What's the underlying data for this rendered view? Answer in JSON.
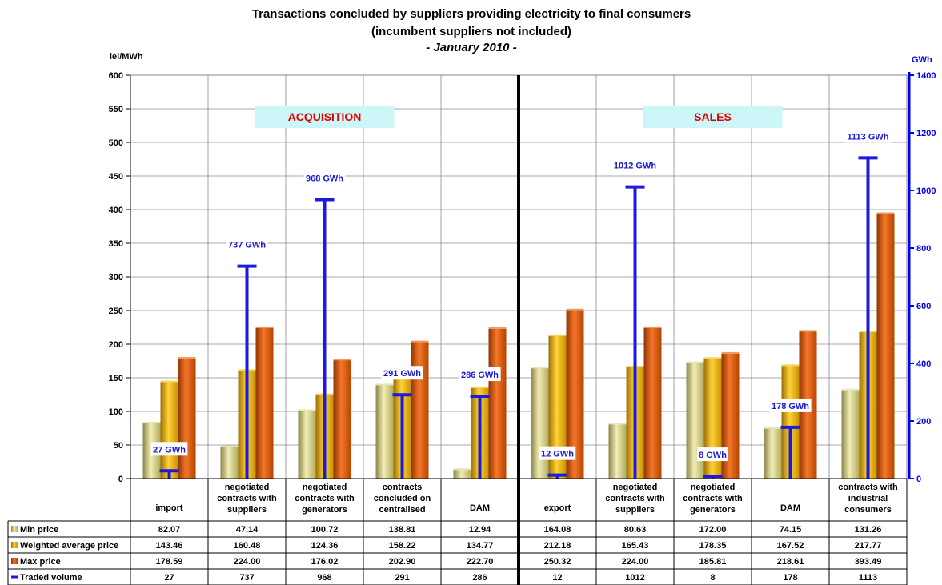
{
  "chart_data": {
    "type": "bar",
    "title": "Transactions concluded by suppliers providing electricity to final consumers",
    "subtitle": "(incumbent suppliers not included)",
    "period": "- January 2010 -",
    "ylabel_left": "lei/MWh",
    "ylabel_right": "GWh",
    "ylim_left": [
      0,
      600
    ],
    "ylim_right": [
      0,
      1400
    ],
    "yticks_left": [
      0,
      50,
      100,
      150,
      200,
      250,
      300,
      350,
      400,
      450,
      500,
      550,
      600
    ],
    "yticks_right": [
      0,
      200,
      400,
      600,
      800,
      1000,
      1200,
      1400
    ],
    "grid": true,
    "sections": [
      {
        "label": "ACQUISITION",
        "from": 0,
        "to": 4
      },
      {
        "label": "SALES",
        "from": 5,
        "to": 9
      }
    ],
    "categories": [
      [
        "import"
      ],
      [
        "negotiated",
        "contracts with",
        "suppliers"
      ],
      [
        "negotiated",
        "contracts with",
        "generators"
      ],
      [
        "contracts",
        "concluded on",
        "centralised"
      ],
      [
        "DAM"
      ],
      [
        "export"
      ],
      [
        "negotiated",
        "contracts with",
        "suppliers"
      ],
      [
        "negotiated",
        "contracts with",
        "generators"
      ],
      [
        "DAM"
      ],
      [
        "contracts with",
        "industrial",
        "consumers"
      ]
    ],
    "series": [
      {
        "name": "Min price",
        "axis": "left",
        "color": "#d9d48a",
        "values": [
          82.07,
          47.14,
          100.72,
          138.81,
          12.94,
          164.08,
          80.63,
          172.0,
          74.15,
          131.26
        ]
      },
      {
        "name": "Weighted average price",
        "axis": "left",
        "color": "#f3b800",
        "values": [
          143.46,
          160.48,
          124.36,
          158.22,
          134.77,
          212.18,
          165.43,
          178.35,
          167.52,
          217.77
        ]
      },
      {
        "name": "Max price",
        "axis": "left",
        "color": "#e05a00",
        "values": [
          178.59,
          224.0,
          176.02,
          202.9,
          222.7,
          250.32,
          224.0,
          185.81,
          218.61,
          393.49
        ]
      },
      {
        "name": "Traded volume",
        "axis": "right",
        "color": "#1a1ae0",
        "values": [
          27,
          737,
          968,
          291,
          286,
          12,
          1012,
          8,
          178,
          1113
        ]
      }
    ],
    "volume_labels": [
      "27 GWh",
      "737 GWh",
      "968 GWh",
      "291 GWh",
      "286 GWh",
      "12 GWh",
      "1012 GWh",
      "8 GWh",
      "178 GWh",
      "1113 GWh"
    ],
    "table_rows": [
      {
        "label": "Min price",
        "cells": [
          "82.07",
          "47.14",
          "100.72",
          "138.81",
          "12.94",
          "164.08",
          "80.63",
          "172.00",
          "74.15",
          "131.26"
        ]
      },
      {
        "label": "Weighted average price",
        "cells": [
          "143.46",
          "160.48",
          "124.36",
          "158.22",
          "134.77",
          "212.18",
          "165.43",
          "178.35",
          "167.52",
          "217.77"
        ]
      },
      {
        "label": "Max price",
        "cells": [
          "178.59",
          "224.00",
          "176.02",
          "202.90",
          "222.70",
          "250.32",
          "224.00",
          "185.81",
          "218.61",
          "393.49"
        ]
      },
      {
        "label": "Traded volume",
        "cells": [
          "27",
          "737",
          "968",
          "291",
          "286",
          "12",
          "1012",
          "8",
          "178",
          "1113"
        ]
      }
    ]
  }
}
